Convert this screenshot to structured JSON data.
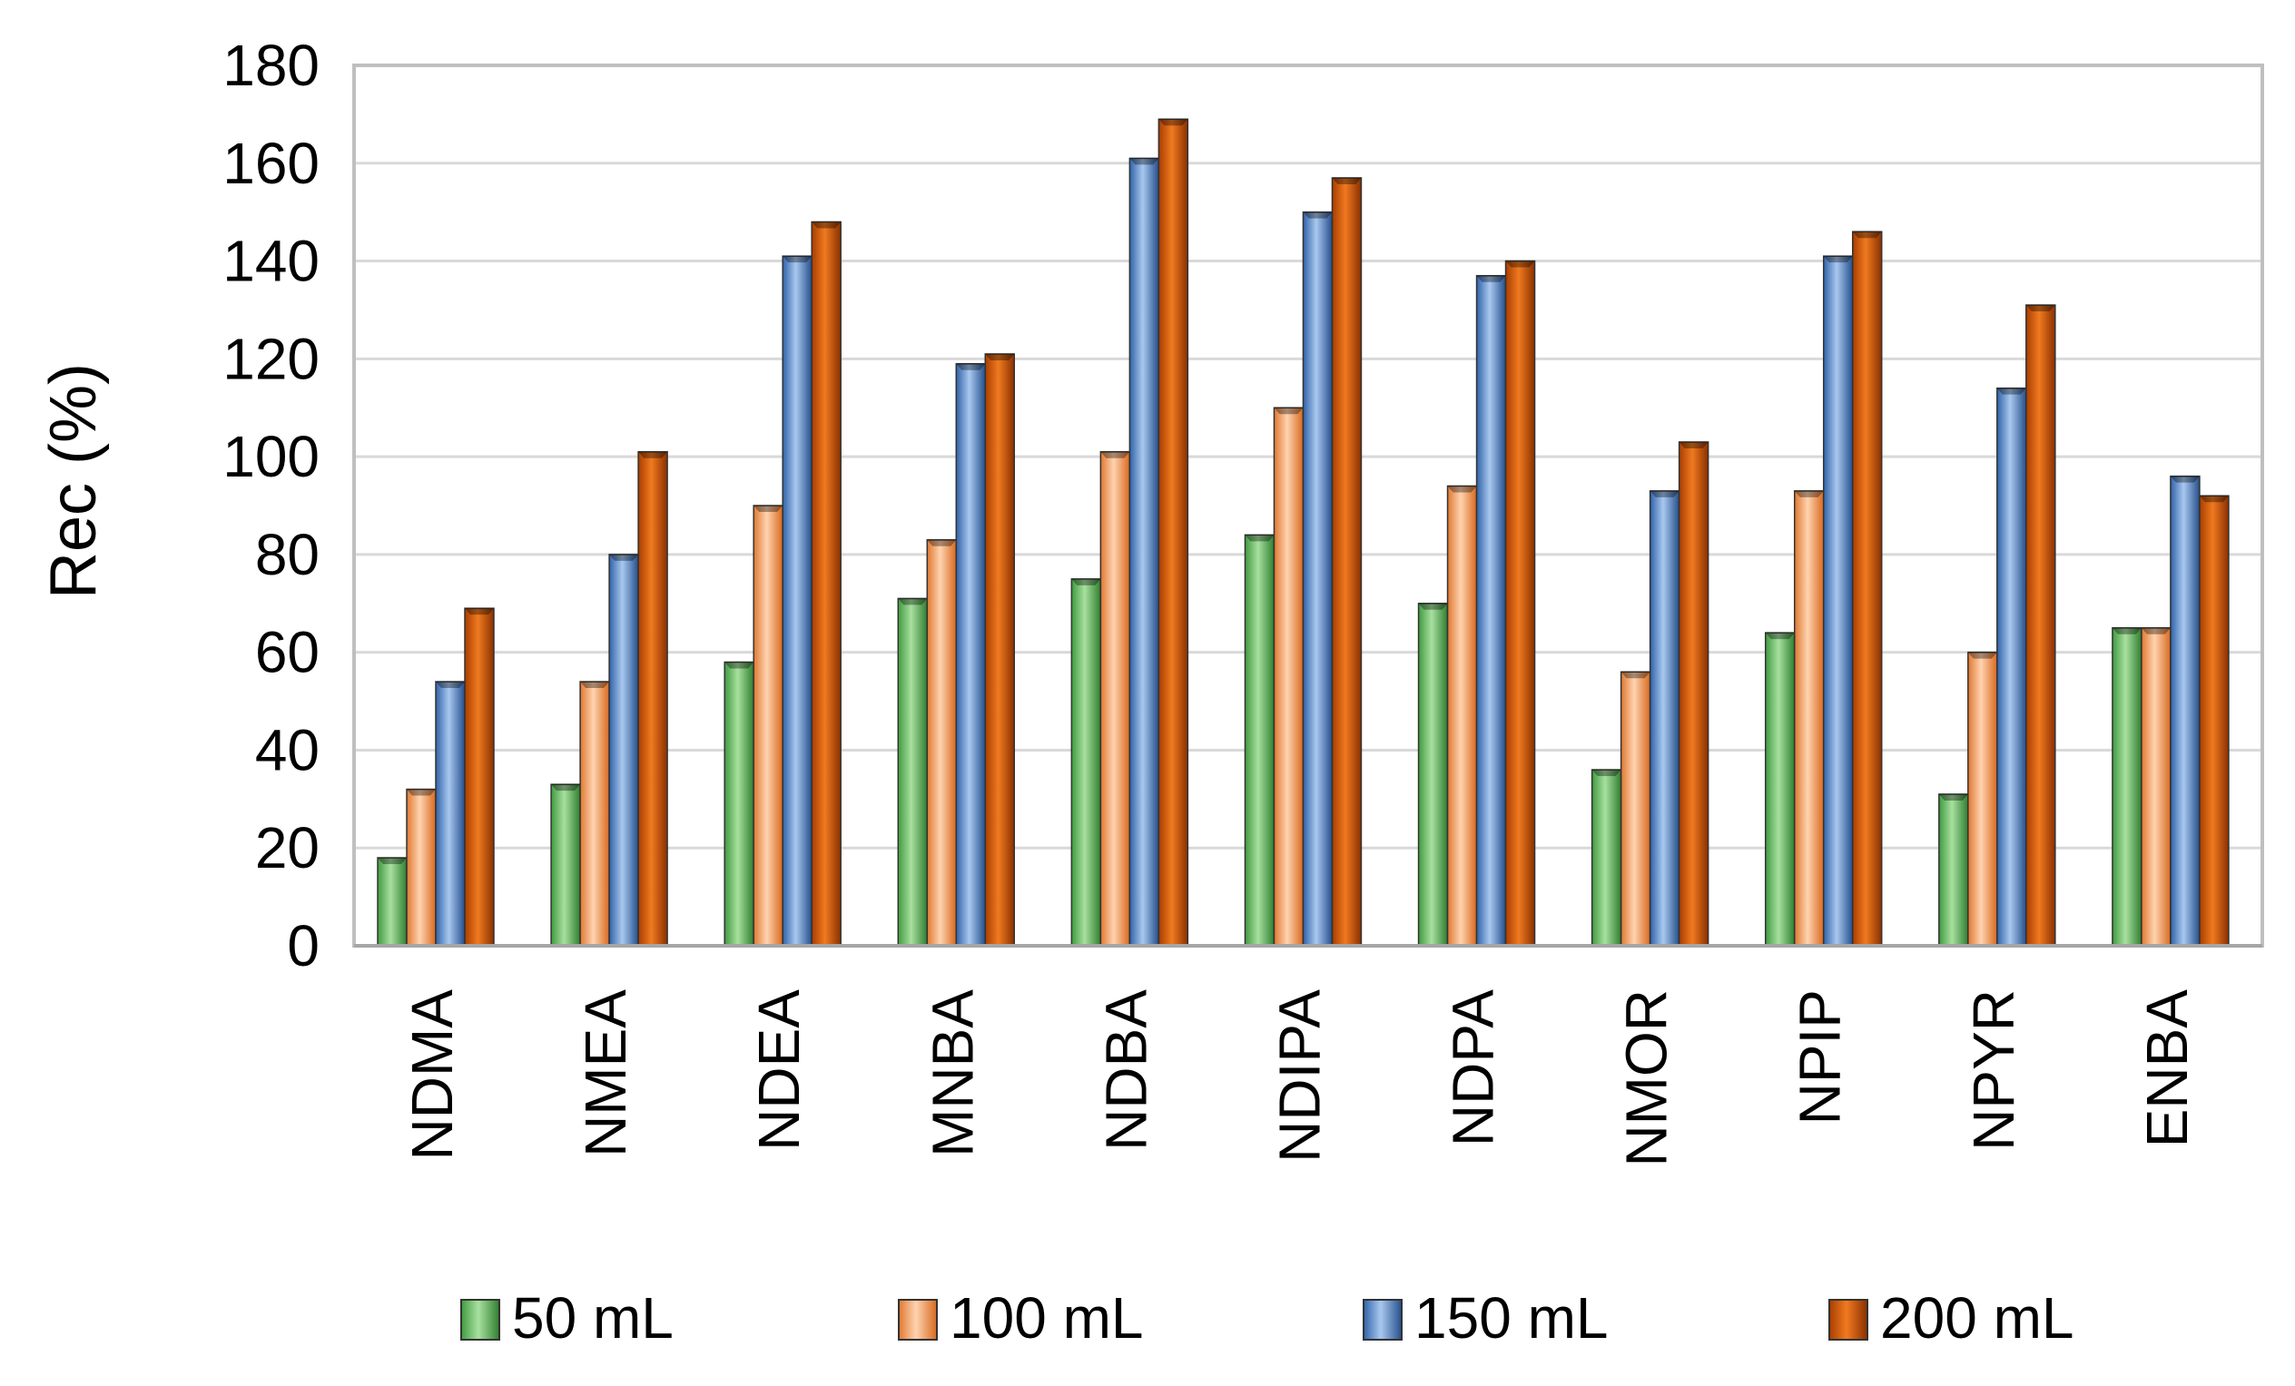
{
  "chart_data": {
    "type": "bar",
    "title": "",
    "xlabel": "",
    "ylabel": "Rec (%)",
    "ylim": [
      0,
      180
    ],
    "yticks": [
      0,
      20,
      40,
      60,
      80,
      100,
      120,
      140,
      160,
      180
    ],
    "grid": true,
    "legend_position": "bottom",
    "categories": [
      "NDMA",
      "NMEA",
      "NDEA",
      "MNBA",
      "NDBA",
      "NDIPA",
      "NDPA",
      "NMOR",
      "NPIP",
      "NPYR",
      "ENBA"
    ],
    "series": [
      {
        "name": "50 mL",
        "color": "#5cb85c",
        "values": [
          18,
          33,
          58,
          71,
          75,
          84,
          70,
          36,
          64,
          31,
          65
        ]
      },
      {
        "name": "100 mL",
        "color": "#f79646",
        "values": [
          32,
          54,
          90,
          83,
          101,
          110,
          94,
          56,
          93,
          60,
          65
        ]
      },
      {
        "name": "150 mL",
        "color": "#4f81bd",
        "values": [
          54,
          80,
          141,
          119,
          161,
          150,
          137,
          93,
          141,
          114,
          96
        ]
      },
      {
        "name": "200 mL",
        "color": "#d35400",
        "values": [
          69,
          101,
          148,
          121,
          169,
          157,
          140,
          103,
          146,
          131,
          92
        ]
      }
    ]
  }
}
